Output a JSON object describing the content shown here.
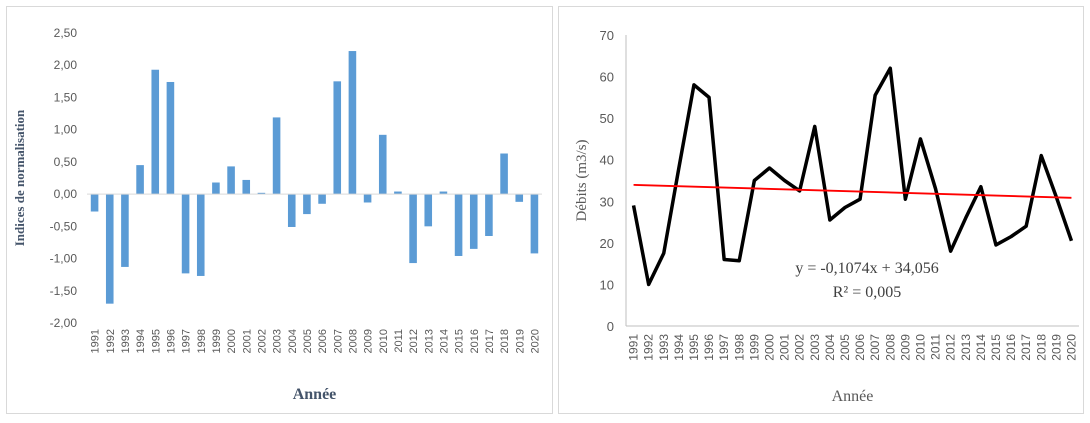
{
  "chart_data": [
    {
      "type": "bar",
      "title": "",
      "xlabel": "Année",
      "ylabel": "Indices  de  normalisation",
      "ylim": [
        -2.0,
        2.5
      ],
      "yticks": [
        "2,50",
        "2,00",
        "1,50",
        "1,00",
        "0,50",
        "0,00",
        "-0,50",
        "-1,00",
        "-1,50",
        "-2,00"
      ],
      "categories": [
        "1991",
        "1992",
        "1993",
        "1994",
        "1995",
        "1996",
        "1997",
        "1998",
        "1999",
        "2000",
        "2001",
        "2002",
        "2003",
        "2004",
        "2005",
        "2006",
        "2007",
        "2008",
        "2009",
        "2010",
        "2011",
        "2012",
        "2013",
        "2014",
        "2015",
        "2016",
        "2017",
        "2018",
        "2019",
        "2020"
      ],
      "values": [
        -0.27,
        -1.7,
        -1.13,
        0.45,
        1.93,
        1.74,
        -1.23,
        -1.27,
        0.18,
        0.43,
        0.22,
        0.02,
        1.19,
        -0.51,
        -0.31,
        -0.15,
        1.75,
        2.22,
        -0.13,
        0.92,
        0.04,
        -1.07,
        -0.5,
        0.04,
        -0.96,
        -0.85,
        -0.65,
        0.63,
        -0.12,
        -0.92
      ],
      "grid": false,
      "color": "#5b9bd5"
    },
    {
      "type": "line",
      "title": "",
      "xlabel": "Année",
      "ylabel": "Débits  (m3/s)",
      "ylim": [
        0,
        70
      ],
      "yticks": [
        "0",
        "10",
        "20",
        "30",
        "40",
        "50",
        "60",
        "70"
      ],
      "categories": [
        "1991",
        "1992",
        "1993",
        "1994",
        "1995",
        "1996",
        "1997",
        "1998",
        "1999",
        "2000",
        "2001",
        "2002",
        "2003",
        "2004",
        "2005",
        "2006",
        "2007",
        "2008",
        "2009",
        "2010",
        "2011",
        "2012",
        "2013",
        "2014",
        "2015",
        "2016",
        "2017",
        "2018",
        "2019",
        "2020"
      ],
      "values": [
        29,
        10,
        17.5,
        38,
        58,
        55,
        16,
        15.7,
        35,
        38,
        35,
        32.5,
        48,
        25.5,
        28.5,
        30.5,
        55.5,
        62,
        30.5,
        45,
        33,
        18,
        26,
        33.5,
        19.5,
        21.5,
        24,
        41,
        31,
        20.5
      ],
      "trendline": {
        "slope": -0.1074,
        "intercept": 34.056,
        "color": "#ff0000"
      },
      "equation": "y = -0,1074x + 34,056",
      "r2": "R² = 0,005",
      "line_color": "#000000",
      "grid": false
    }
  ]
}
